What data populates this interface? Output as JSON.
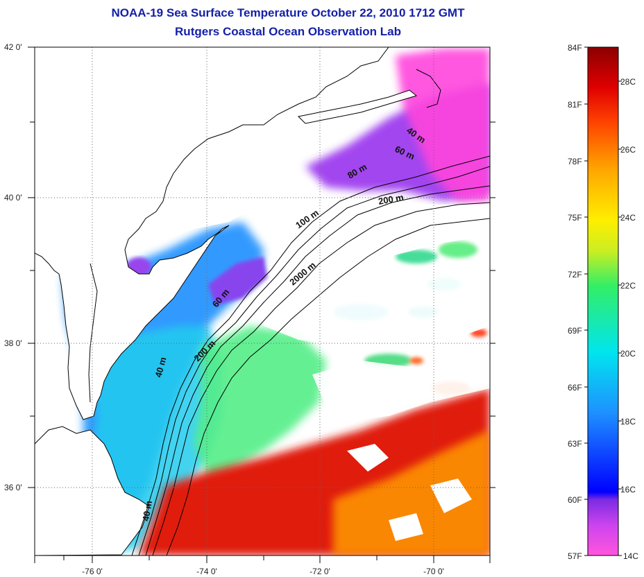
{
  "title": {
    "line1": "NOAA-19 Sea Surface Temperature October 22, 2010 1712 GMT",
    "line2": "Rutgers Coastal Ocean Observation Lab"
  },
  "map": {
    "lat_ticks": [
      "42 0'",
      "40 0'",
      "38 0'",
      "36 0'"
    ],
    "lon_ticks": [
      "-76 0'",
      "-74 0'",
      "-72 0'",
      "-70 0'"
    ],
    "contour_labels": [
      "40 m",
      "60 m",
      "80 m",
      "200 m",
      "100 m",
      "2000 m",
      "60 m",
      "200 m",
      "40 m",
      "40 m"
    ],
    "land_color": "#ffffff",
    "coast_color": "#000000"
  },
  "colorbar": {
    "fahrenheit_labels": [
      "84F",
      "81F",
      "78F",
      "75F",
      "72F",
      "69F",
      "66F",
      "63F",
      "60F",
      "57F"
    ],
    "celsius_labels": [
      "28C",
      "26C",
      "24C",
      "22C",
      "20C",
      "18C",
      "16C",
      "14C"
    ],
    "colors": [
      "#ff55dd",
      "#8a2be2",
      "#0000ff",
      "#1e90ff",
      "#00e5ee",
      "#33ee66",
      "#ccee22",
      "#ffee00",
      "#ffa500",
      "#ff4500",
      "#e00000",
      "#8b0000"
    ]
  }
}
